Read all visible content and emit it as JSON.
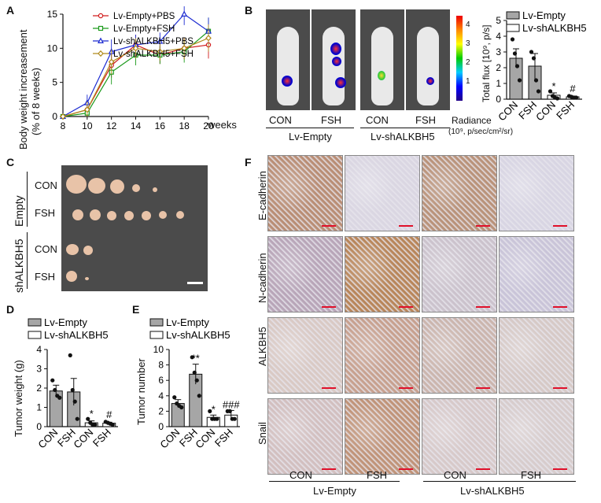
{
  "panels": {
    "A": {
      "label": "A",
      "ylabel_line1": "Body weight increasement",
      "ylabel_line2": "(% of 8 weeks)",
      "xlabel": "weeks",
      "legend": [
        "Lv-Empty+PBS",
        "Lv-Empty+FSH",
        "Lv-shALKBH5+PBS",
        "Lv-shALKBH5+FSH"
      ],
      "colors": [
        "#d11c1c",
        "#1c9a1c",
        "#1c2bd1",
        "#b08a1c"
      ]
    },
    "B": {
      "label": "B",
      "group_labels": [
        "CON",
        "FSH",
        "CON",
        "FSH"
      ],
      "group_names": [
        "Lv-Empty",
        "Lv-shALKBH5"
      ],
      "scale_ticks": [
        "4",
        "3",
        "2",
        "1"
      ],
      "radiance_label": "Radiance",
      "radiance_units": "(10⁹, p/sec/cm²/sr)",
      "ylabel": "Total flux [10⁹, p/s]",
      "legend": [
        "Lv-Empty",
        "Lv-shALKBH5"
      ],
      "xticks": [
        "CON",
        "FSH",
        "CON",
        "FSH"
      ],
      "sig": [
        "*",
        "#"
      ]
    },
    "C": {
      "label": "C",
      "rows": [
        "CON",
        "FSH",
        "CON",
        "FSH"
      ],
      "groups": [
        "Empty",
        "shALKBH5"
      ]
    },
    "D": {
      "label": "D",
      "legend": [
        "Lv-Empty",
        "Lv-shALKBH5"
      ],
      "ylabel": "Tumor weight (g)",
      "xticks": [
        "CON",
        "FSH",
        "CON",
        "FSH"
      ],
      "sig": [
        "*",
        "#"
      ]
    },
    "E": {
      "label": "E",
      "legend": [
        "Lv-Empty",
        "Lv-shALKBH5"
      ],
      "ylabel": "Tumor number",
      "xticks": [
        "CON",
        "FSH",
        "CON",
        "FSH"
      ],
      "sig": [
        "**",
        "*",
        "###"
      ]
    },
    "F": {
      "label": "F",
      "rows": [
        "E-cadherin",
        "N-cadherin",
        "ALKBH5",
        "Snail"
      ],
      "cols": [
        "CON",
        "FSH",
        "CON",
        "FSH"
      ],
      "groups": [
        "Lv-Empty",
        "Lv-shALKBH5"
      ]
    }
  },
  "chart_data": [
    {
      "type": "line",
      "panel": "A",
      "x": [
        8,
        10,
        12,
        14,
        16,
        18,
        20
      ],
      "xlim": [
        8,
        20
      ],
      "ylim": [
        0,
        15
      ],
      "yticks": [
        0,
        5,
        10,
        15
      ],
      "series": [
        {
          "name": "Lv-Empty+PBS",
          "values": [
            0,
            1,
            7.5,
            10.5,
            9,
            10,
            10.5
          ],
          "color": "#d11c1c",
          "marker": "circle"
        },
        {
          "name": "Lv-Empty+FSH",
          "values": [
            0,
            0.5,
            6.5,
            9,
            9,
            9.5,
            12.5
          ],
          "color": "#1c9a1c",
          "marker": "square"
        },
        {
          "name": "Lv-shALKBH5+PBS",
          "values": [
            0,
            2,
            9.5,
            10.5,
            11,
            15,
            12.5
          ],
          "color": "#1c2bd1",
          "marker": "triangle"
        },
        {
          "name": "Lv-shALKBH5+FSH",
          "values": [
            0,
            1,
            8,
            10,
            9.5,
            10,
            11.5
          ],
          "color": "#b08a1c",
          "marker": "diamond"
        }
      ]
    },
    {
      "type": "bar",
      "panel": "B",
      "categories": [
        "CON",
        "FSH",
        "CON",
        "FSH"
      ],
      "values": [
        2.6,
        2.1,
        0.25,
        0.15
      ],
      "errors": [
        0.6,
        0.8,
        0.15,
        0.05
      ],
      "groups": [
        "Lv-Empty",
        "Lv-Empty",
        "Lv-shALKBH5",
        "Lv-shALKBH5"
      ],
      "points": [
        [
          3.8,
          2.9,
          2.1,
          1.2
        ],
        [
          3.0,
          2.6,
          1.2,
          0.5
        ],
        [
          0.5,
          0.2,
          0.1,
          0.05
        ],
        [
          0.2,
          0.15,
          0.1,
          0.1
        ]
      ],
      "ylim": [
        0,
        5
      ],
      "yticks": [
        0,
        1,
        2,
        3,
        4,
        5
      ],
      "ylabel": "Total flux [10⁹, p/s]"
    },
    {
      "type": "bar",
      "panel": "D",
      "categories": [
        "CON",
        "FSH",
        "CON",
        "FSH"
      ],
      "values": [
        1.85,
        1.8,
        0.2,
        0.18
      ],
      "errors": [
        0.3,
        0.7,
        0.1,
        0.05
      ],
      "groups": [
        "Lv-Empty",
        "Lv-Empty",
        "Lv-shALKBH5",
        "Lv-shALKBH5"
      ],
      "points": [
        [
          2.4,
          1.9,
          1.6,
          1.5
        ],
        [
          3.7,
          1.9,
          1.3,
          0.4
        ],
        [
          0.4,
          0.2,
          0.1,
          0.1
        ],
        [
          0.25,
          0.2,
          0.15,
          0.1
        ]
      ],
      "ylim": [
        0,
        4
      ],
      "yticks": [
        0,
        1,
        2,
        3,
        4
      ],
      "ylabel": "Tumor weight (g)"
    },
    {
      "type": "bar",
      "panel": "E",
      "categories": [
        "CON",
        "FSH",
        "CON",
        "FSH"
      ],
      "values": [
        3,
        6.8,
        1.2,
        1.5
      ],
      "errors": [
        0.5,
        1.3,
        0.3,
        0.6
      ],
      "groups": [
        "Lv-Empty",
        "Lv-Empty",
        "Lv-shALKBH5",
        "Lv-shALKBH5"
      ],
      "points": [
        [
          3.8,
          3,
          2.7,
          2.5
        ],
        [
          9,
          7,
          6,
          4
        ],
        [
          2,
          1,
          1,
          1
        ],
        [
          2,
          2,
          1,
          1
        ]
      ],
      "ylim": [
        0,
        10
      ],
      "yticks": [
        0,
        2,
        4,
        6,
        8,
        10
      ],
      "ylabel": "Tumor number"
    }
  ]
}
